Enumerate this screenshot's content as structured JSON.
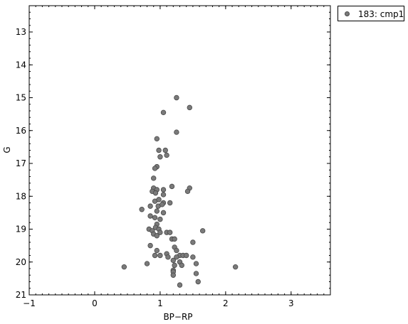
{
  "chart_data": {
    "type": "scatter",
    "title": "",
    "xlabel": "BP−RP",
    "ylabel": "G",
    "xlim": [
      -1,
      3.6
    ],
    "ylim": [
      21,
      12.2
    ],
    "y_inverted": true,
    "x_ticks": [
      "−1",
      "0",
      "1",
      "2",
      "3"
    ],
    "x_tick_values": [
      -1,
      0,
      1,
      2,
      3
    ],
    "y_ticks": [
      "13",
      "14",
      "15",
      "16",
      "17",
      "18",
      "19",
      "20",
      "21"
    ],
    "y_tick_values": [
      13,
      14,
      15,
      16,
      17,
      18,
      19,
      20,
      21
    ],
    "grid": false,
    "legend_position": "outside-top-right",
    "series": [
      {
        "name": "183: cmp1",
        "color": "#7a7a7a",
        "points": [
          [
            1.25,
            15.0
          ],
          [
            1.45,
            15.3
          ],
          [
            1.05,
            15.45
          ],
          [
            1.25,
            16.05
          ],
          [
            0.95,
            16.25
          ],
          [
            0.98,
            16.6
          ],
          [
            1.08,
            16.6
          ],
          [
            1.0,
            16.8
          ],
          [
            1.1,
            16.75
          ],
          [
            0.95,
            17.1
          ],
          [
            0.92,
            17.15
          ],
          [
            0.9,
            17.45
          ],
          [
            0.9,
            17.75
          ],
          [
            0.88,
            17.85
          ],
          [
            0.95,
            17.8
          ],
          [
            0.93,
            17.9
          ],
          [
            1.05,
            17.8
          ],
          [
            1.18,
            17.7
          ],
          [
            1.45,
            17.75
          ],
          [
            1.42,
            17.85
          ],
          [
            1.05,
            17.95
          ],
          [
            0.92,
            18.15
          ],
          [
            0.98,
            18.1
          ],
          [
            1.05,
            18.2
          ],
          [
            1.15,
            18.2
          ],
          [
            0.85,
            18.3
          ],
          [
            0.72,
            18.4
          ],
          [
            0.97,
            18.3
          ],
          [
            1.03,
            18.25
          ],
          [
            0.95,
            18.45
          ],
          [
            1.05,
            18.5
          ],
          [
            0.85,
            18.6
          ],
          [
            0.92,
            18.65
          ],
          [
            1.0,
            18.7
          ],
          [
            0.95,
            18.85
          ],
          [
            0.93,
            18.95
          ],
          [
            0.98,
            19.0
          ],
          [
            0.83,
            19.0
          ],
          [
            0.88,
            19.05
          ],
          [
            1.0,
            19.1
          ],
          [
            1.1,
            19.1
          ],
          [
            1.15,
            19.1
          ],
          [
            1.65,
            19.05
          ],
          [
            0.9,
            19.15
          ],
          [
            0.95,
            19.2
          ],
          [
            1.18,
            19.3
          ],
          [
            1.22,
            19.3
          ],
          [
            1.5,
            19.4
          ],
          [
            0.85,
            19.5
          ],
          [
            1.22,
            19.55
          ],
          [
            1.25,
            19.65
          ],
          [
            0.95,
            19.65
          ],
          [
            1.1,
            19.75
          ],
          [
            1.3,
            19.8
          ],
          [
            1.35,
            19.8
          ],
          [
            1.4,
            19.8
          ],
          [
            0.92,
            19.8
          ],
          [
            1.0,
            19.8
          ],
          [
            1.12,
            19.85
          ],
          [
            1.25,
            19.85
          ],
          [
            1.5,
            19.85
          ],
          [
            1.2,
            19.95
          ],
          [
            1.3,
            20.0
          ],
          [
            1.55,
            20.05
          ],
          [
            0.8,
            20.05
          ],
          [
            1.22,
            20.1
          ],
          [
            1.33,
            20.1
          ],
          [
            0.45,
            20.15
          ],
          [
            2.15,
            20.15
          ],
          [
            1.2,
            20.25
          ],
          [
            1.2,
            20.3
          ],
          [
            1.55,
            20.35
          ],
          [
            1.2,
            20.4
          ],
          [
            1.58,
            20.6
          ],
          [
            1.3,
            20.7
          ]
        ]
      }
    ]
  }
}
